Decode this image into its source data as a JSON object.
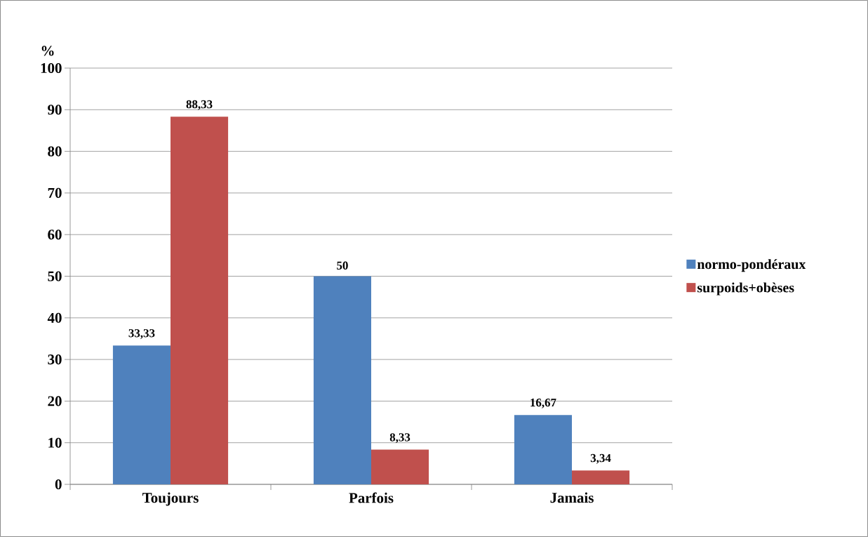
{
  "chart_data": {
    "type": "bar",
    "ylabel": "%",
    "categories": [
      "Toujours",
      "Parfois",
      "Jamais"
    ],
    "series": [
      {
        "name": "normo-pondéraux",
        "color": "#4f81bd",
        "values": [
          33.33,
          50,
          16.67
        ],
        "value_labels": [
          "33,33",
          "50",
          "16,67"
        ]
      },
      {
        "name": "surpoids+obèses",
        "color": "#c0504d",
        "values": [
          88.33,
          8.33,
          3.34
        ],
        "value_labels": [
          "88,33",
          "8,33",
          "3,34"
        ]
      }
    ],
    "ylim": [
      0,
      100
    ],
    "yticks": [
      0,
      10,
      20,
      30,
      40,
      50,
      60,
      70,
      80,
      90,
      100
    ],
    "grid": "y",
    "legend": "right"
  }
}
